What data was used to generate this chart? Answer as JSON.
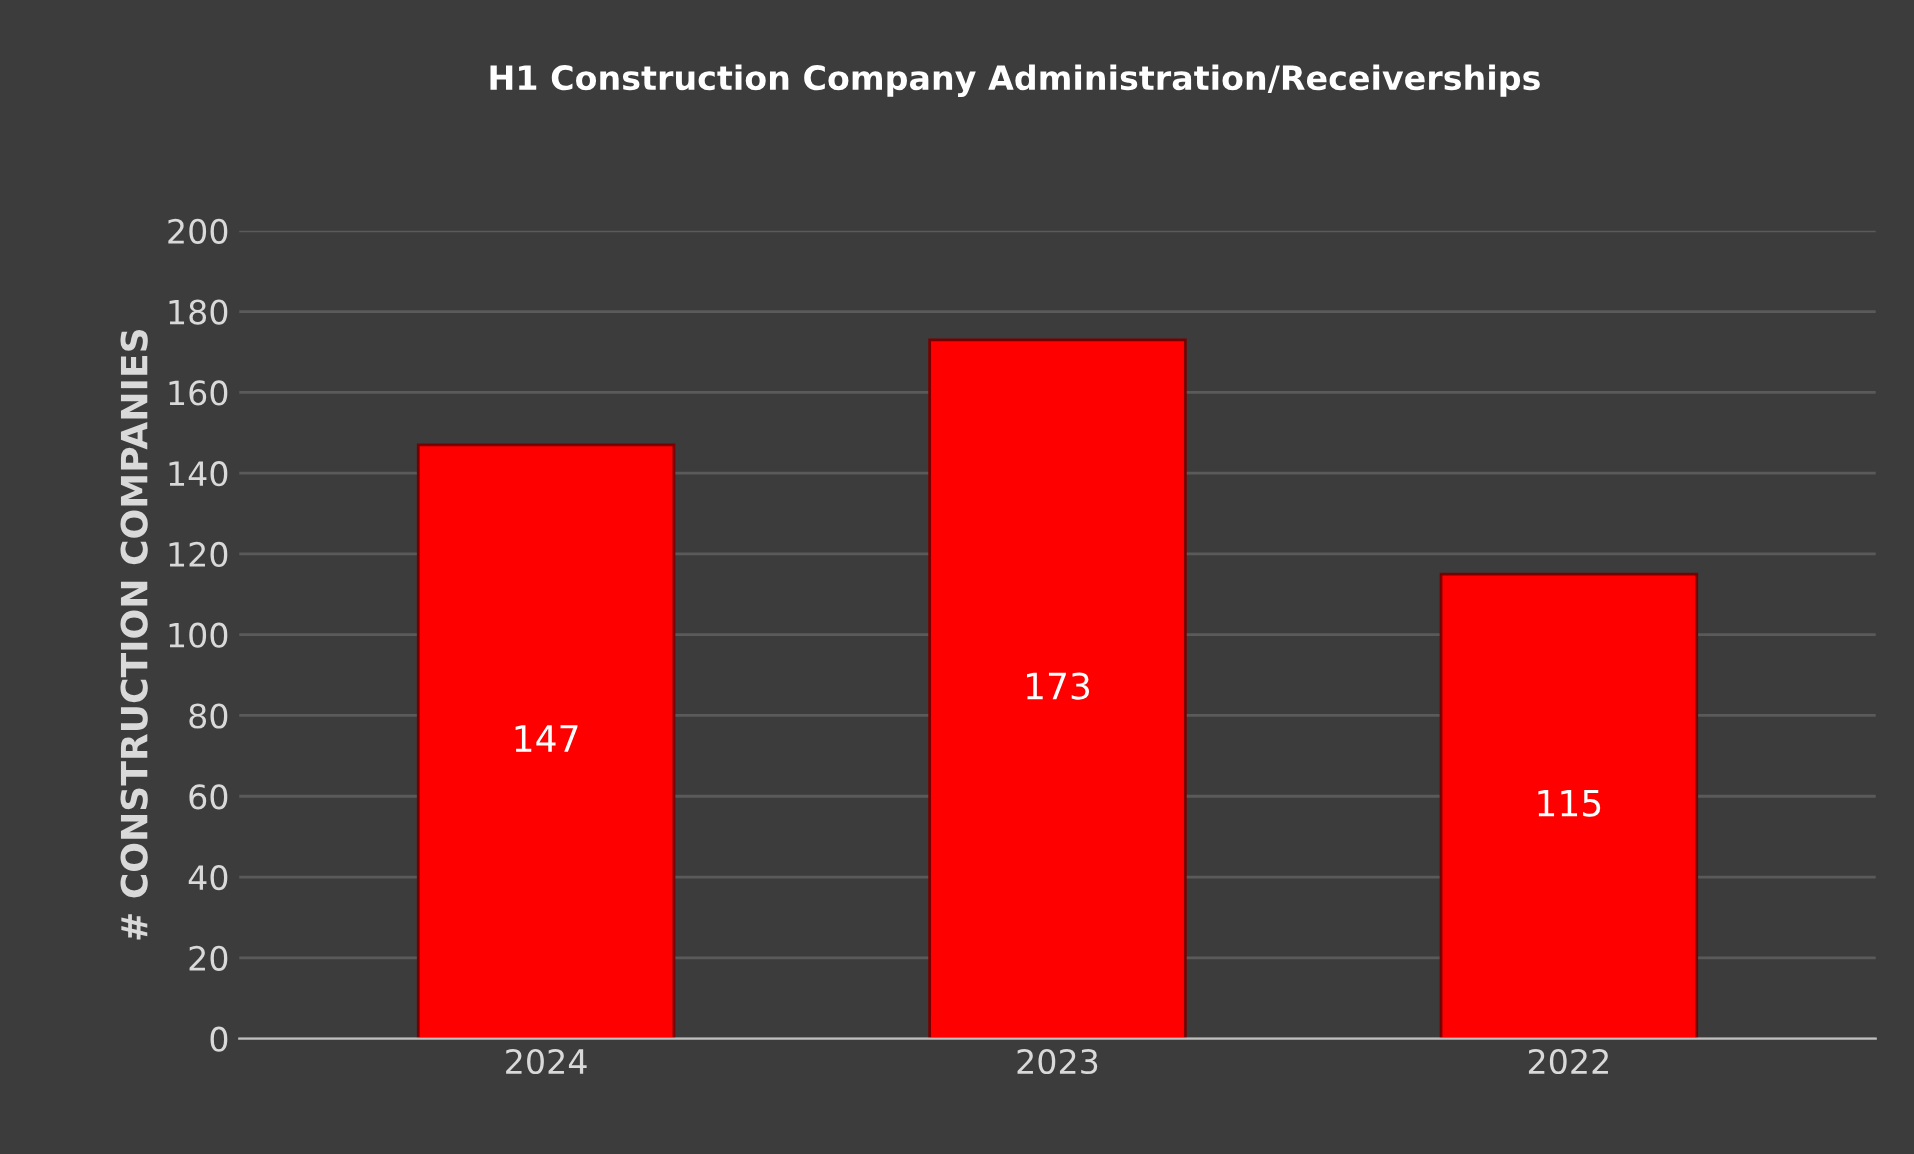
{
  "chart_data": {
    "type": "bar",
    "title": "H1 Construction Company Administration/Receiverships",
    "ylabel": "# CONSTRUCTION COMPANIES",
    "categories": [
      "2024",
      "2023",
      "2022"
    ],
    "values": [
      147,
      173,
      115
    ],
    "color": "#ff0000",
    "ylim": [
      0,
      200
    ],
    "yticks": [
      0,
      20,
      40,
      60,
      80,
      100,
      120,
      140,
      160,
      180,
      200
    ],
    "grid": "y",
    "data_labels": true
  }
}
